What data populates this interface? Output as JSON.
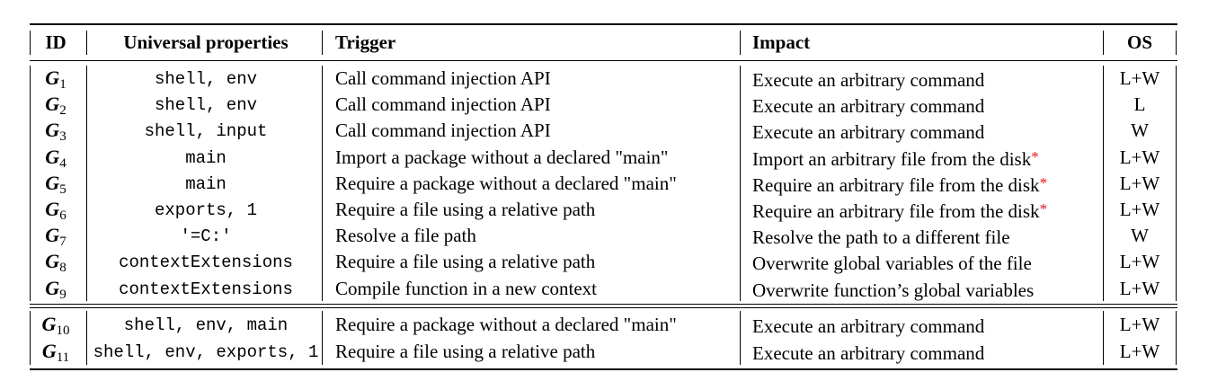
{
  "table": {
    "headers": {
      "id": "ID",
      "properties": "Universal properties",
      "trigger": "Trigger",
      "impact": "Impact",
      "os": "OS"
    },
    "rows_group1": [
      {
        "id_letter": "G",
        "id_sub": "1",
        "props": "shell, env",
        "trigger": "Call command injection API",
        "impact": "Execute an arbitrary command",
        "star": "",
        "os": "L+W"
      },
      {
        "id_letter": "G",
        "id_sub": "2",
        "props": "shell, env",
        "trigger": "Call command injection API",
        "impact": "Execute an arbitrary command",
        "star": "",
        "os": "L"
      },
      {
        "id_letter": "G",
        "id_sub": "3",
        "props": "shell, input",
        "trigger": "Call command injection API",
        "impact": "Execute an arbitrary command",
        "star": "",
        "os": "W"
      },
      {
        "id_letter": "G",
        "id_sub": "4",
        "props": "main",
        "trigger": "Import a package without a declared \"main\"",
        "impact": "Import an arbitrary file from the disk",
        "star": "*",
        "os": "L+W"
      },
      {
        "id_letter": "G",
        "id_sub": "5",
        "props": "main",
        "trigger": "Require a package without a declared \"main\"",
        "impact": "Require an arbitrary file from the disk",
        "star": "*",
        "os": "L+W"
      },
      {
        "id_letter": "G",
        "id_sub": "6",
        "props": "exports, 1",
        "trigger": "Require a file using a relative path",
        "impact": "Require an arbitrary file from the disk",
        "star": "*",
        "os": "L+W"
      },
      {
        "id_letter": "G",
        "id_sub": "7",
        "props": "'=C:'",
        "trigger": "Resolve a file path",
        "impact": "Resolve the path to a different file",
        "star": "",
        "os": "W"
      },
      {
        "id_letter": "G",
        "id_sub": "8",
        "props": "contextExtensions",
        "trigger": "Require a file using a relative path",
        "impact": "Overwrite global variables of the file",
        "star": "",
        "os": "L+W"
      },
      {
        "id_letter": "G",
        "id_sub": "9",
        "props": "contextExtensions",
        "trigger": "Compile function in a new context",
        "impact": "Overwrite function’s global variables",
        "star": "",
        "os": "L+W"
      }
    ],
    "rows_group2": [
      {
        "id_letter": "G",
        "id_sub": "10",
        "props": "shell, env, main",
        "trigger": "Require a package without a declared \"main\"",
        "impact": "Execute an arbitrary command",
        "star": "",
        "os": "L+W"
      },
      {
        "id_letter": "G",
        "id_sub": "11",
        "props": "shell, env, exports, 1",
        "trigger": "Require a file using a relative path",
        "impact": "Execute an arbitrary command",
        "star": "",
        "os": "L+W"
      }
    ]
  }
}
